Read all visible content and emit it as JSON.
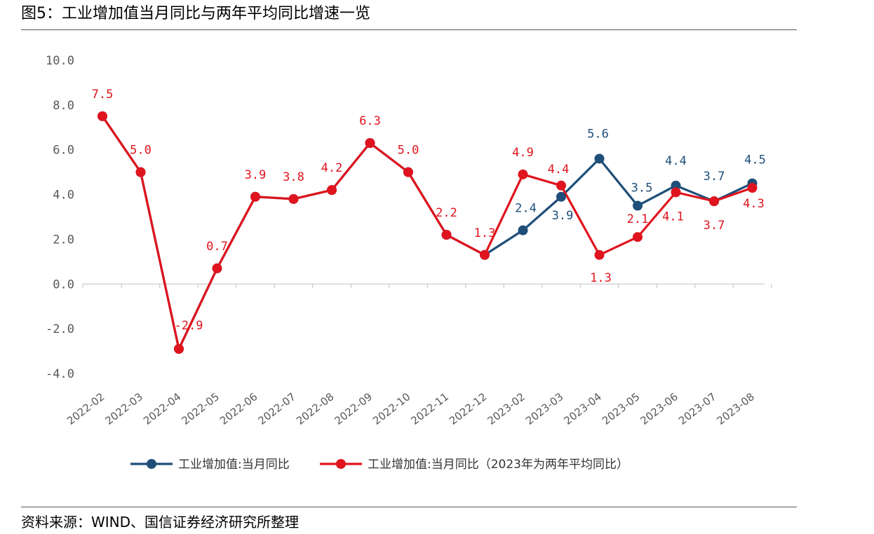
{
  "header": {
    "title": "图5：工业增加值当月同比与两年平均同比增速一览"
  },
  "footer": {
    "source": "资料来源：WIND、国信证券经济研究所整理"
  },
  "colors": {
    "series_blue": "#1F4E79",
    "series_red": "#E0141E"
  },
  "chart_data": {
    "type": "line",
    "title": "",
    "xlabel": "",
    "ylabel": "",
    "ylim": [
      -4.0,
      10.0
    ],
    "yticks": [
      "10.0",
      "8.0",
      "6.0",
      "4.0",
      "2.0",
      "0.0",
      "-2.0",
      "-4.0"
    ],
    "categories": [
      "2022-02",
      "2022-03",
      "2022-04",
      "2022-05",
      "2022-06",
      "2022-07",
      "2022-08",
      "2022-09",
      "2022-10",
      "2022-11",
      "2022-12",
      "2023-02",
      "2023-03",
      "2023-04",
      "2023-05",
      "2023-06",
      "2023-07",
      "2023-08"
    ],
    "grid": false,
    "legend_position": "bottom",
    "series": [
      {
        "name": "工业增加值:当月同比",
        "color": "#1F4E79",
        "values": [
          7.5,
          5.0,
          -2.9,
          0.7,
          3.9,
          3.8,
          4.2,
          6.3,
          5.0,
          2.2,
          1.3,
          2.4,
          3.9,
          5.6,
          3.5,
          4.4,
          3.7,
          4.5
        ],
        "labels": [
          null,
          null,
          null,
          null,
          null,
          null,
          null,
          null,
          null,
          null,
          null,
          "2.4",
          "3.9",
          "5.6",
          "3.5",
          "4.4",
          "3.7",
          "4.5"
        ]
      },
      {
        "name": "工业增加值:当月同比（2023年为两年平均同比）",
        "color": "#E0141E",
        "values": [
          7.5,
          5.0,
          -2.9,
          0.7,
          3.9,
          3.8,
          4.2,
          6.3,
          5.0,
          2.2,
          1.3,
          4.9,
          4.4,
          1.3,
          2.1,
          4.1,
          3.7,
          4.3
        ],
        "labels": [
          "7.5",
          "5.0",
          "-2.9",
          "0.7",
          "3.9",
          "3.8",
          "4.2",
          "6.3",
          "5.0",
          "2.2",
          "1.3",
          "4.9",
          "4.4",
          "1.3",
          "2.1",
          "4.1",
          "3.7",
          "4.3"
        ]
      }
    ]
  }
}
